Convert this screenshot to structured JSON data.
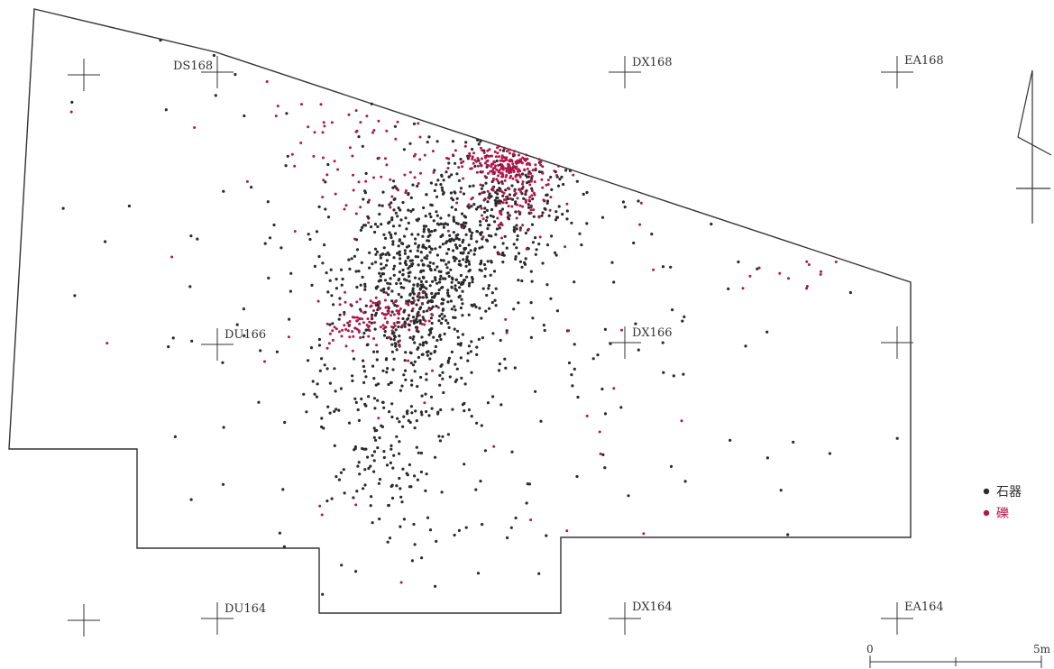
{
  "grid_labels": [
    "DS168",
    "DX168",
    "EA168",
    "DU166",
    "DX166",
    "DU164",
    "DX164",
    "EA164"
  ],
  "legend": {
    "items": [
      {
        "label": "石器",
        "color": "#2b2b2b"
      },
      {
        "label": "礫",
        "color": "#b0164a"
      }
    ]
  },
  "scale": {
    "start_label": "0",
    "end_label": "5m"
  },
  "colors": {
    "stone_tool": "#2b2b2b",
    "gravel": "#b0164a",
    "outline": "#333333"
  },
  "icons": {
    "north": "north-arrow-icon"
  }
}
